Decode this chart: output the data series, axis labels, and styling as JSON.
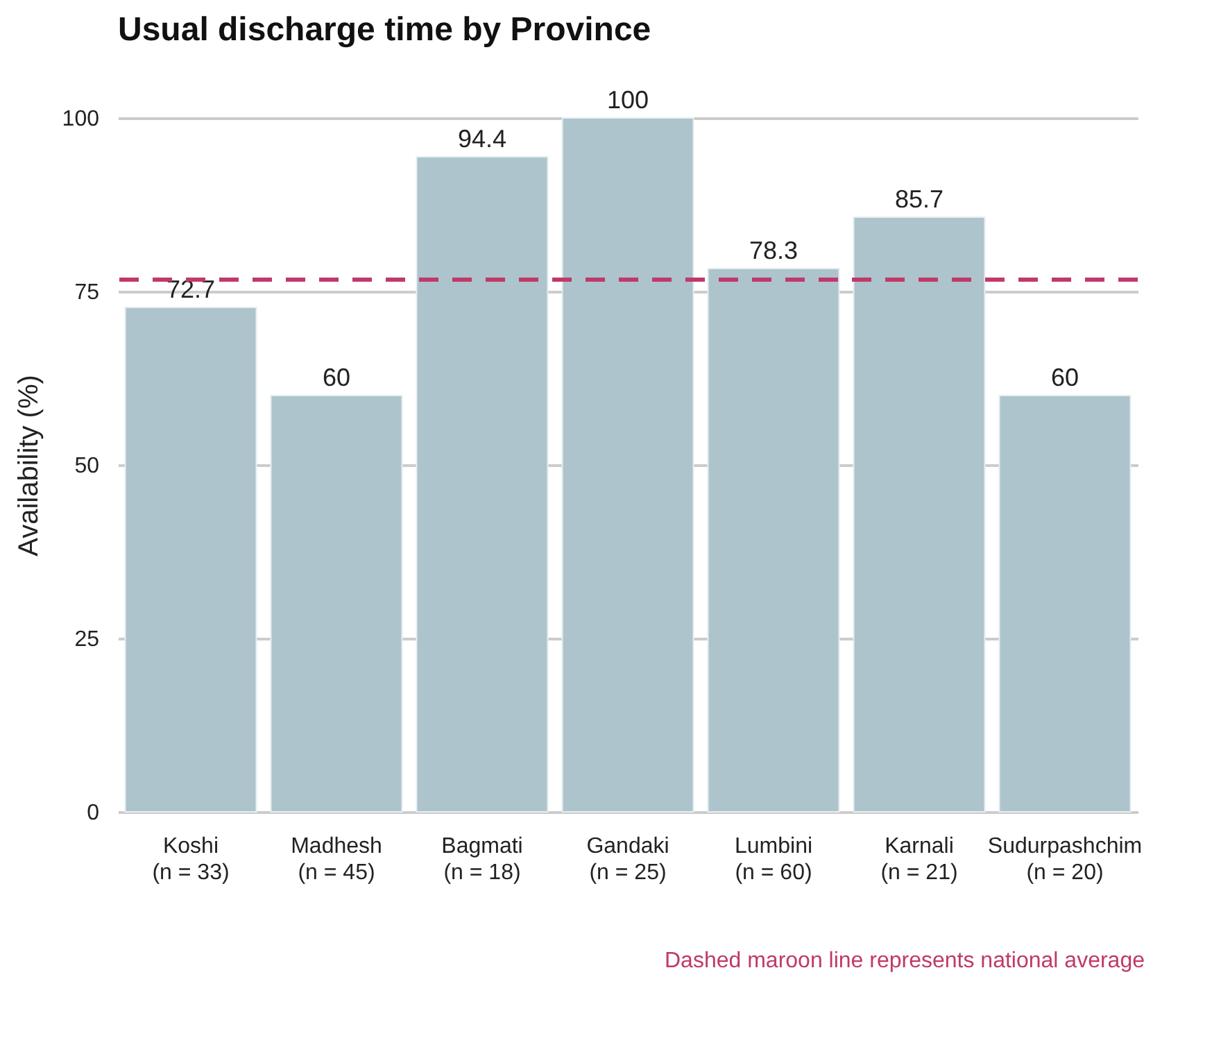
{
  "chart_data": {
    "type": "bar",
    "title": "Usual discharge time by Province",
    "ylabel": "Availability (%)",
    "categories": [
      "Koshi\n(n = 33)",
      "Madhesh\n(n = 45)",
      "Bagmati\n(n = 18)",
      "Gandaki\n(n = 25)",
      "Lumbini\n(n = 60)",
      "Karnali\n(n = 21)",
      "Sudurpashchim\n(n = 20)"
    ],
    "values": [
      72.7,
      60,
      94.4,
      100,
      78.3,
      85.7,
      60
    ],
    "color": "#adc4cc",
    "ylim": [
      0,
      100
    ],
    "yticks": [
      0,
      25,
      50,
      75,
      100
    ],
    "grid": "y",
    "data_labels": true,
    "ref_lines": [
      {
        "axis": "y",
        "value": 76.7,
        "color": "#c0396b",
        "line_style": "dashed"
      }
    ],
    "annotations": [
      "Dashed maroon line represents national average"
    ]
  }
}
